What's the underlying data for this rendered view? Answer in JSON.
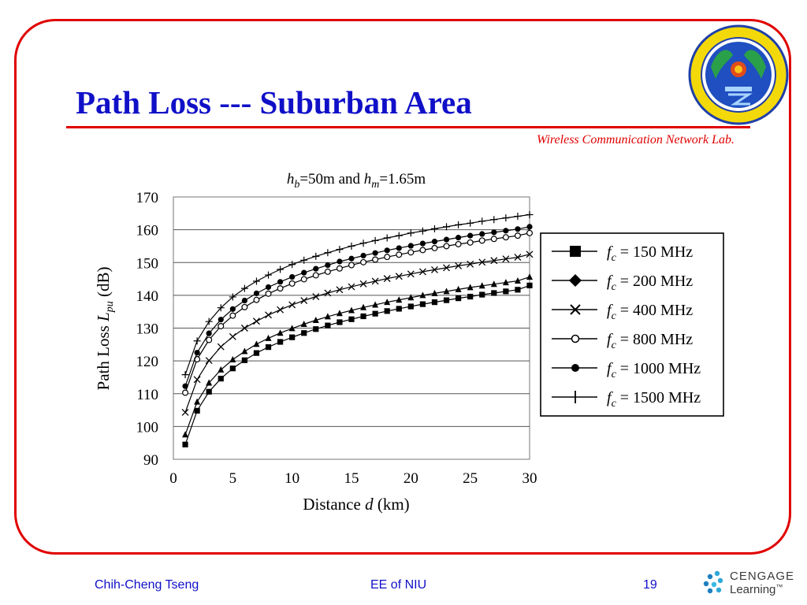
{
  "slide": {
    "title": "Path Loss --- Suburban Area",
    "lab": "Wireless Communication Network Lab.",
    "footer_author": "Chih-Cheng Tseng",
    "footer_dept": "EE of NIU",
    "page_number": "19",
    "publisher_top": "CENGAGE",
    "publisher_bottom": "Learning",
    "publisher_mark": "™",
    "colors": {
      "frame": "#e00000",
      "title": "#1010c8",
      "lab": "#e00000",
      "footer": "#1010c8"
    }
  },
  "chart_data": {
    "type": "line",
    "title_parts": [
      "h",
      "b",
      "=50m and ",
      "h",
      "m",
      "=1.65m"
    ],
    "xlabel_parts": [
      "Distance ",
      "d",
      " (km)"
    ],
    "ylabel_parts": [
      "Path Loss ",
      "L",
      "pu",
      " (dB)"
    ],
    "xlim": [
      0,
      30
    ],
    "ylim": [
      90,
      170
    ],
    "xticks": [
      0,
      5,
      10,
      15,
      20,
      25,
      30
    ],
    "yticks": [
      90,
      100,
      110,
      120,
      130,
      140,
      150,
      160,
      170
    ],
    "grid": "horizontal",
    "legend_position": "right",
    "x": [
      1,
      2,
      3,
      4,
      5,
      6,
      7,
      8,
      9,
      10,
      11,
      12,
      13,
      14,
      15,
      16,
      17,
      18,
      19,
      20,
      21,
      22,
      23,
      24,
      25,
      26,
      27,
      28,
      29,
      30
    ],
    "series": [
      {
        "name_parts": [
          "f",
          "c",
          " = 150 MHz"
        ],
        "marker": "square",
        "values": [
          94.5,
          104.8,
          110.6,
          114.6,
          117.7,
          120.2,
          122.4,
          124.2,
          125.8,
          127.2,
          128.5,
          129.7,
          130.8,
          131.8,
          132.7,
          133.6,
          134.4,
          135.2,
          135.9,
          136.6,
          137.3,
          137.9,
          138.5,
          139.1,
          139.6,
          140.2,
          140.7,
          141.2,
          141.7,
          143.0
        ]
      },
      {
        "name_parts": [
          "f",
          "c",
          " = 200 MHz"
        ],
        "marker": "triangle",
        "values": [
          97.5,
          107.5,
          113.3,
          117.3,
          120.4,
          122.9,
          125.1,
          126.9,
          128.5,
          129.9,
          131.2,
          132.4,
          133.5,
          134.5,
          135.4,
          136.3,
          137.1,
          137.9,
          138.6,
          139.3,
          140.0,
          140.6,
          141.2,
          141.8,
          142.4,
          142.9,
          143.4,
          143.9,
          144.4,
          145.6
        ]
      },
      {
        "name_parts": [
          "f",
          "c",
          " = 400 MHz"
        ],
        "marker": "x",
        "values": [
          104.3,
          114.3,
          120.1,
          124.3,
          127.4,
          130.0,
          132.1,
          134.0,
          135.6,
          137.1,
          138.4,
          139.6,
          140.7,
          141.7,
          142.6,
          143.5,
          144.3,
          145.1,
          145.8,
          146.5,
          147.2,
          147.8,
          148.4,
          149.0,
          149.5,
          150.1,
          150.6,
          151.1,
          151.6,
          152.5
        ]
      },
      {
        "name_parts": [
          "f",
          "c",
          " = 800 MHz"
        ],
        "marker": "circle-open",
        "values": [
          110.3,
          120.5,
          126.4,
          130.6,
          133.8,
          136.4,
          138.6,
          140.5,
          142.1,
          143.6,
          144.9,
          146.1,
          147.2,
          148.2,
          149.2,
          150.1,
          150.9,
          151.7,
          152.4,
          153.1,
          153.8,
          154.4,
          155.0,
          155.6,
          156.1,
          156.7,
          157.2,
          157.7,
          158.2,
          159.0
        ]
      },
      {
        "name_parts": [
          "f",
          "c",
          " = 1000 MHz"
        ],
        "marker": "circle-filled",
        "values": [
          112.3,
          122.5,
          128.4,
          132.6,
          135.8,
          138.4,
          140.6,
          142.5,
          144.1,
          145.6,
          146.9,
          148.1,
          149.2,
          150.3,
          151.2,
          152.1,
          152.9,
          153.7,
          154.4,
          155.1,
          155.8,
          156.4,
          157.0,
          157.6,
          158.2,
          158.7,
          159.2,
          159.7,
          160.2,
          160.9
        ]
      },
      {
        "name_parts": [
          "f",
          "c",
          " = 1500 MHz"
        ],
        "marker": "plus",
        "values": [
          115.8,
          126.1,
          132.0,
          136.2,
          139.5,
          142.1,
          144.3,
          146.2,
          147.9,
          149.4,
          150.7,
          151.9,
          153.0,
          154.0,
          155.0,
          155.9,
          156.7,
          157.5,
          158.2,
          159.0,
          159.6,
          160.3,
          160.9,
          161.5,
          162.0,
          162.6,
          163.1,
          163.6,
          164.1,
          164.6
        ]
      }
    ]
  }
}
